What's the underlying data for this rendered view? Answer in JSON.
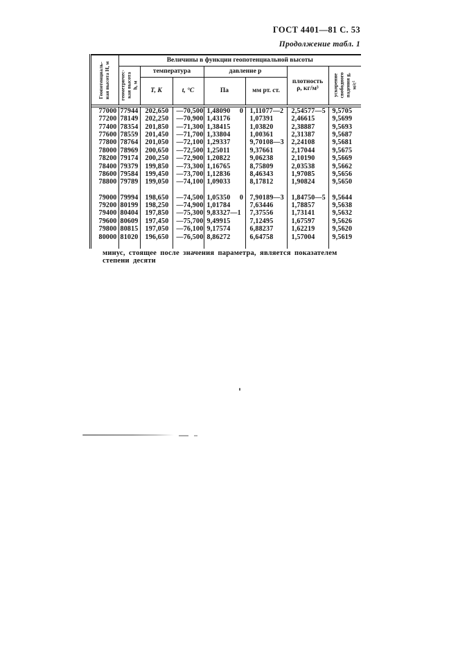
{
  "page": {
    "doc_ref": "ГОСТ 4401—81 С. 53",
    "continuation": "Продолжение табл. 1",
    "footnote": "минус, стоящее после значения параметра, является показателем степени десяти"
  },
  "table": {
    "span_header": "Величины в функции геопотенциальной высоты",
    "col_geopotential": "Геопотенциаль-\nная высота Н, м",
    "col_geometric": "геометричес-\nкая высота\nh, м",
    "temperature_header": "температура",
    "pressure_header": "давление р",
    "col_T": "Т, К",
    "col_t": "t, °С",
    "col_Pa": "Па",
    "col_mm": "мм рт. ст.",
    "col_density": "плотность\nρ, кг/м³",
    "col_g": "ускорение\nсвободного\nпадения g,\nм/с²",
    "groups": [
      [
        [
          "77000",
          "77944",
          "202,650",
          "—70,500",
          "1,48090     0",
          "1,11077—2",
          "2,54577—5",
          "9,5705"
        ],
        [
          "77200",
          "78149",
          "202,250",
          "—70,900",
          "1,43176",
          "1,07391",
          "2,46615",
          "9,5699"
        ],
        [
          "77400",
          "78354",
          "201,850",
          "—71,300",
          "1,38415",
          "1,03820",
          "2,38887",
          "9,5693"
        ],
        [
          "77600",
          "78559",
          "201,450",
          "—71,700",
          "1,33804",
          "1,00361",
          "2,31387",
          "9,5687"
        ],
        [
          "77800",
          "78764",
          "201,050",
          "—72,100",
          "1,29337",
          "9,70108—3",
          "2,24108",
          "9,5681"
        ],
        [
          "78000",
          "78969",
          "200,650",
          "—72,500",
          "1,25011",
          "9,37661",
          "2,17044",
          "9,5675"
        ],
        [
          "78200",
          "79174",
          "200,250",
          "—72,900",
          "1,20822",
          "9,06238",
          "2,10190",
          "9,5669"
        ],
        [
          "78400",
          "79379",
          "199,850",
          "—73,300",
          "1,16765",
          "8,75809",
          "2,03538",
          "9,5662"
        ],
        [
          "78600",
          "79584",
          "199,450",
          "—73,700",
          "1,12836",
          "8,46343",
          "1,97085",
          "9,5656"
        ],
        [
          "78800",
          "79789",
          "199,050",
          "—74,100",
          "1,09033",
          "8,17812",
          "1,90824",
          "9,5650"
        ]
      ],
      [
        [
          "79000",
          "79994",
          "198,650",
          "—74,500",
          "1,05350     0",
          "7,90189—3",
          "1,84750—5",
          "9,5644"
        ],
        [
          "79200",
          "80199",
          "198,250",
          "—74,900",
          "1,01784",
          "7,63446",
          "1,78857",
          "9,5638"
        ],
        [
          "79400",
          "80404",
          "197,850",
          "—75,300",
          "9,83327—1",
          "7,37556",
          "1,73141",
          "9,5632"
        ],
        [
          "79600",
          "80609",
          "197,450",
          "—75,700",
          "9,49915",
          "7,12495",
          "1,67597",
          "9,5626"
        ],
        [
          "79800",
          "80815",
          "197,050",
          "—76,100",
          "9,17574",
          "6,88237",
          "1,62219",
          "9,5620"
        ],
        [
          "80000",
          "81020",
          "196,650",
          "—76,500",
          "8,86272",
          "6,64758",
          "1,57004",
          "9,5619"
        ]
      ]
    ]
  }
}
